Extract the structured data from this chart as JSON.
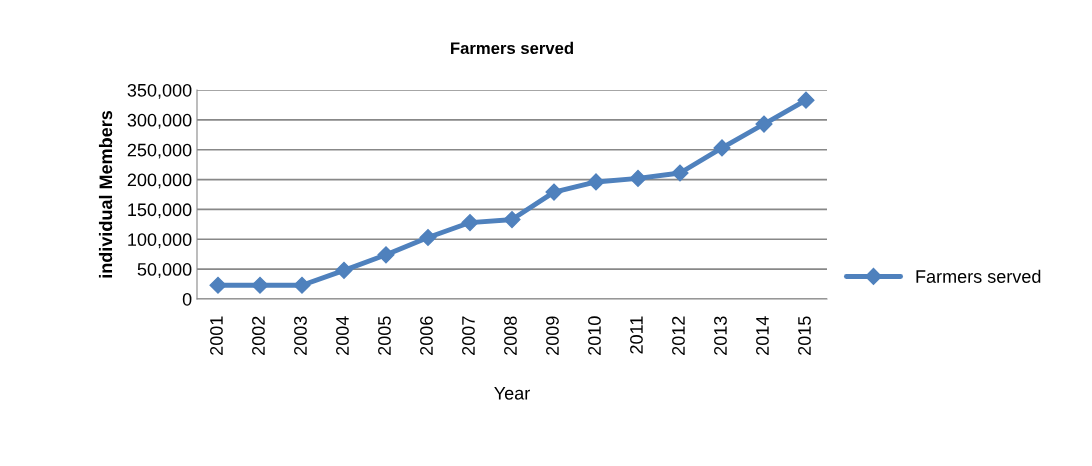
{
  "chart_data": {
    "type": "line",
    "title": "Farmers served",
    "xlabel": "Year",
    "ylabel": "individual Members",
    "categories": [
      "2001",
      "2002",
      "2003",
      "2004",
      "2005",
      "2006",
      "2007",
      "2008",
      "2009",
      "2010",
      "2011",
      "2012",
      "2013",
      "2014",
      "2015"
    ],
    "series": [
      {
        "name": "Farmers served",
        "color": "#4f81bd",
        "values": [
          23000,
          23000,
          23000,
          48000,
          74000,
          103000,
          128000,
          133000,
          179000,
          196000,
          202000,
          211000,
          253000,
          293000,
          333000
        ]
      }
    ],
    "ylim": [
      0,
      350000
    ],
    "yticks": [
      {
        "value": 0,
        "label": "0"
      },
      {
        "value": 50000,
        "label": "50,000"
      },
      {
        "value": 100000,
        "label": "100,000"
      },
      {
        "value": 150000,
        "label": "150,000"
      },
      {
        "value": 200000,
        "label": "200,000"
      },
      {
        "value": 250000,
        "label": "250,000"
      },
      {
        "value": 300000,
        "label": "300,000"
      },
      {
        "value": 350000,
        "label": "350,000"
      }
    ],
    "grid": "y",
    "legend": "right",
    "marker": "diamond",
    "line_style": "solid"
  }
}
